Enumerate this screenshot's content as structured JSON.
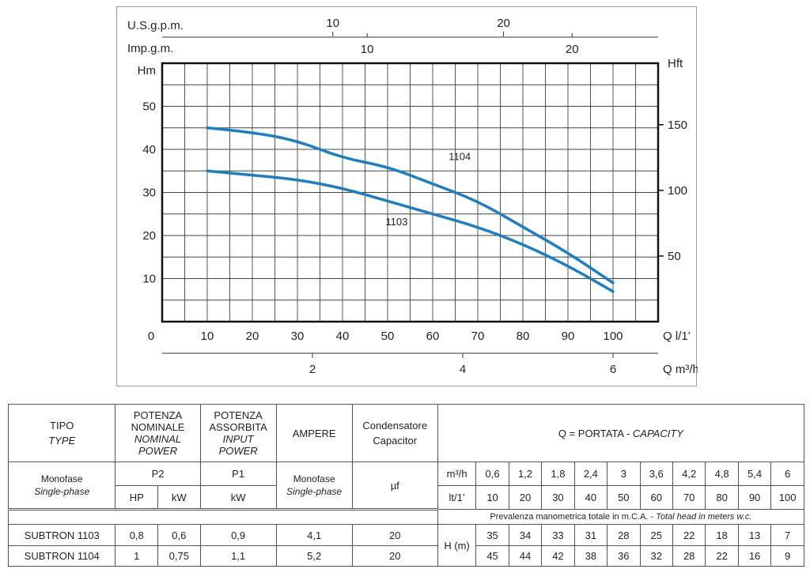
{
  "chart_data": {
    "type": "line",
    "x_unit_label": "Q l/1’",
    "y_left_unit_label": "Hm",
    "y_right_unit_label": "Hft",
    "secondary_x_label": "Q m³/h",
    "top_axis_1_label": "U.S.g.p.m.",
    "top_axis_2_label": "Imp.g.m.",
    "xlim": [
      0,
      110
    ],
    "ylim": [
      0,
      60
    ],
    "x_ticks": [
      "0",
      "10",
      "20",
      "30",
      "40",
      "50",
      "60",
      "70",
      "80",
      "90",
      "100"
    ],
    "y_ticks": [
      "10",
      "20",
      "30",
      "40",
      "50"
    ],
    "ft_ticks": [
      "50",
      "100",
      "150"
    ],
    "m3h_ticks": [
      "2",
      "4",
      "6"
    ],
    "usgpm_ticks": [
      "10",
      "20"
    ],
    "impgm_ticks": [
      "10",
      "20"
    ],
    "grid": true,
    "series": [
      {
        "name": "1104",
        "x": [
          10,
          20,
          30,
          40,
          50,
          60,
          70,
          80,
          90,
          100
        ],
        "y": [
          45,
          44,
          42,
          38,
          36,
          32,
          28,
          22,
          16,
          9
        ]
      },
      {
        "name": "1103",
        "x": [
          10,
          20,
          30,
          40,
          50,
          60,
          70,
          80,
          90,
          100
        ],
        "y": [
          35,
          34,
          33,
          31,
          28,
          25,
          22,
          18,
          13,
          7
        ]
      }
    ],
    "colors": {
      "curve": "#1a7fc4",
      "frame": "#111111",
      "grid": "#444444"
    }
  },
  "table": {
    "tipo": "TIPO",
    "type": "TYPE",
    "pot_nom_1": "POTENZA",
    "pot_nom_2": "NOMINALE",
    "pot_nom_it_1": "NOMINAL",
    "pot_nom_it_2": "POWER",
    "pot_ass_1": "POTENZA",
    "pot_ass_2": "ASSORBITA",
    "pot_ass_it_1": "INPUT",
    "pot_ass_it_2": "POWER",
    "ampere": "AMPERE",
    "cond_1": "Condensatore",
    "cond_2": "Capacitor",
    "portata": "Q = PORTATA - ",
    "capacity": "CAPACITY",
    "monofase": "Monofase",
    "single_phase": "Single-phase",
    "p2": "P2",
    "p1": "P1",
    "hp": "HP",
    "kw": "kW",
    "uf": "µf",
    "m3h": "m³/h",
    "lt": "lt/1’",
    "h_m": "H (m)",
    "prevalenza": "Prevalenza manometrica totale in m.C.A. - ",
    "prevalenza_it": "Total head in meters w.c.",
    "m3h_values": [
      "0,6",
      "1,2",
      "1,8",
      "2,4",
      "3",
      "3,6",
      "4,2",
      "4,8",
      "5,4",
      "6"
    ],
    "lt_values": [
      "10",
      "20",
      "30",
      "40",
      "50",
      "60",
      "70",
      "80",
      "90",
      "100"
    ],
    "rows": [
      {
        "model": "SUBTRON 1103",
        "hp": "0,8",
        "kw": "0,6",
        "p1_kw": "0,9",
        "ampere": "4,1",
        "uf": "20",
        "h": [
          "35",
          "34",
          "33",
          "31",
          "28",
          "25",
          "22",
          "18",
          "13",
          "7"
        ]
      },
      {
        "model": "SUBTRON 1104",
        "hp": "1",
        "kw": "0,75",
        "p1_kw": "1,1",
        "ampere": "5,2",
        "uf": "20",
        "h": [
          "45",
          "44",
          "42",
          "38",
          "36",
          "32",
          "28",
          "22",
          "16",
          "9"
        ]
      }
    ]
  }
}
